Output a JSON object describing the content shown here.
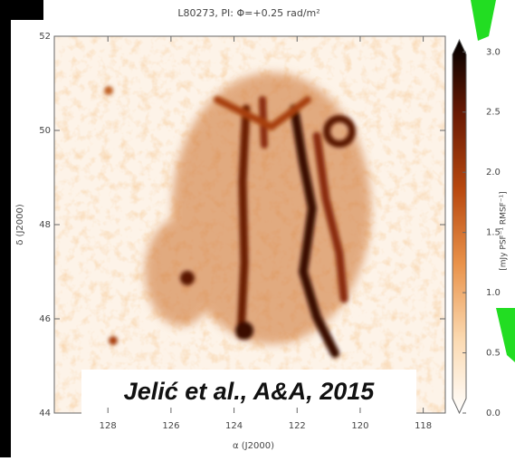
{
  "chart_data": {
    "type": "heatmap",
    "title": "L80273, PI: Φ=+0.25 rad/m²",
    "xlabel": "α (J2000)",
    "ylabel": "δ (J2000)",
    "xlim": [
      129.7,
      117.3
    ],
    "xticks": [
      128,
      126,
      124,
      122,
      120,
      118
    ],
    "ylim": [
      44,
      52
    ],
    "yticks": [
      44,
      46,
      48,
      50,
      52
    ],
    "colorbar": {
      "label": "[mJy PSF⁻¹ RMSF⁻¹]",
      "lim": [
        0,
        3.1
      ],
      "ticks": [
        {
          "value": 0,
          "label": "0.0"
        },
        0.5,
        {
          "value": 1,
          "label": "1.0"
        },
        1.5,
        {
          "value": 2,
          "label": "2.0"
        },
        2.5,
        {
          "value": 3,
          "label": "3.0"
        }
      ],
      "colors": [
        "#ffffff",
        "#fbd9b0",
        "#e9924a",
        "#b8480f",
        "#6a1a04",
        "#000000"
      ]
    },
    "annotation": "Jelić et al., A&A, 2015"
  }
}
